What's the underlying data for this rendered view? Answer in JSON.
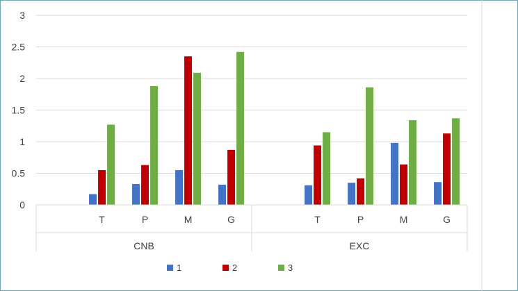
{
  "chart_data": {
    "type": "bar",
    "groups": [
      {
        "name": "CNB",
        "categories": [
          "T",
          "P",
          "M",
          "G"
        ]
      },
      {
        "name": "EXC",
        "categories": [
          "T",
          "P",
          "M",
          "G"
        ]
      }
    ],
    "series": [
      {
        "name": "1",
        "color": "#4472c4",
        "values": [
          0.17,
          0.33,
          0.55,
          0.32,
          0.31,
          0.35,
          0.98,
          0.36
        ]
      },
      {
        "name": "2",
        "color": "#c00000",
        "values": [
          0.55,
          0.63,
          2.35,
          0.87,
          0.94,
          0.42,
          0.64,
          1.13
        ]
      },
      {
        "name": "3",
        "color": "#70ad47",
        "values": [
          1.27,
          1.88,
          2.09,
          2.42,
          1.15,
          1.86,
          1.34,
          1.37
        ]
      }
    ],
    "y_ticks": [
      "0",
      "0.5",
      "1",
      "1.5",
      "2",
      "2.5",
      "3"
    ],
    "ylim": [
      0,
      3
    ],
    "grid": true,
    "legend_position": "bottom",
    "title": "",
    "xlabel": "",
    "ylabel": ""
  }
}
